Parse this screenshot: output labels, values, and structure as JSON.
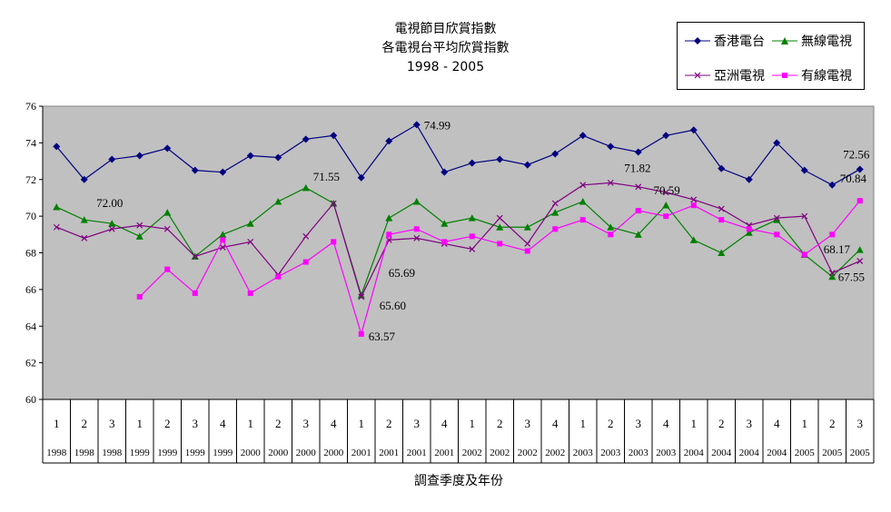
{
  "chart_data": {
    "type": "line",
    "title_lines": [
      "電視節目欣賞指數",
      "各電視台平均欣賞指數",
      "1998 - 2005"
    ],
    "xlabel": "調查季度及年份",
    "ylabel": "",
    "ylim": [
      60,
      76
    ],
    "yticks": [
      "60",
      "62",
      "64",
      "66",
      "68",
      "70",
      "72",
      "74",
      "76"
    ],
    "grid": false,
    "legend_position": "top-right",
    "categories": [
      {
        "q": "1",
        "y": "1998"
      },
      {
        "q": "2",
        "y": "1998"
      },
      {
        "q": "3",
        "y": "1998"
      },
      {
        "q": "1",
        "y": "1999"
      },
      {
        "q": "2",
        "y": "1999"
      },
      {
        "q": "3",
        "y": "1999"
      },
      {
        "q": "4",
        "y": "1999"
      },
      {
        "q": "1",
        "y": "2000"
      },
      {
        "q": "2",
        "y": "2000"
      },
      {
        "q": "3",
        "y": "2000"
      },
      {
        "q": "4",
        "y": "2000"
      },
      {
        "q": "1",
        "y": "2001"
      },
      {
        "q": "2",
        "y": "2001"
      },
      {
        "q": "3",
        "y": "2001"
      },
      {
        "q": "4",
        "y": "2001"
      },
      {
        "q": "1",
        "y": "2002"
      },
      {
        "q": "2",
        "y": "2002"
      },
      {
        "q": "3",
        "y": "2002"
      },
      {
        "q": "4",
        "y": "2002"
      },
      {
        "q": "1",
        "y": "2003"
      },
      {
        "q": "2",
        "y": "2003"
      },
      {
        "q": "3",
        "y": "2003"
      },
      {
        "q": "4",
        "y": "2003"
      },
      {
        "q": "1",
        "y": "2004"
      },
      {
        "q": "2",
        "y": "2004"
      },
      {
        "q": "3",
        "y": "2004"
      },
      {
        "q": "4",
        "y": "2004"
      },
      {
        "q": "1",
        "y": "2005"
      },
      {
        "q": "2",
        "y": "2005"
      },
      {
        "q": "3",
        "y": "2005"
      }
    ],
    "series": [
      {
        "name": "香港電台",
        "color": "#000080",
        "marker": "diamond",
        "values": [
          73.8,
          72.0,
          73.1,
          73.3,
          73.7,
          72.5,
          72.4,
          73.3,
          73.2,
          74.2,
          74.4,
          72.1,
          74.1,
          74.99,
          72.4,
          72.9,
          73.1,
          72.8,
          73.4,
          74.4,
          73.8,
          73.5,
          74.4,
          74.7,
          72.6,
          72.0,
          74.0,
          72.5,
          71.7,
          72.56
        ]
      },
      {
        "name": "無線電視",
        "color": "#008000",
        "marker": "triangle",
        "values": [
          70.5,
          69.8,
          69.6,
          68.9,
          70.2,
          67.8,
          69.0,
          69.6,
          70.8,
          71.55,
          70.7,
          65.69,
          69.9,
          70.8,
          69.6,
          69.9,
          69.4,
          69.4,
          70.2,
          70.8,
          69.4,
          69.0,
          70.6,
          68.7,
          68.0,
          69.1,
          69.8,
          67.9,
          66.7,
          68.17
        ]
      },
      {
        "name": "亞洲電視",
        "color": "#800080",
        "marker": "x",
        "values": [
          69.4,
          68.8,
          69.3,
          69.5,
          69.3,
          67.8,
          68.3,
          68.6,
          66.8,
          68.9,
          70.7,
          65.6,
          68.7,
          68.8,
          68.5,
          68.2,
          69.9,
          68.5,
          70.7,
          71.7,
          71.82,
          71.6,
          71.3,
          70.9,
          70.4,
          69.5,
          69.9,
          70.0,
          66.9,
          67.55
        ]
      },
      {
        "name": "有線電視",
        "color": "#FF00FF",
        "marker": "square",
        "values": [
          null,
          null,
          null,
          65.6,
          67.1,
          65.8,
          68.7,
          65.8,
          66.7,
          67.5,
          68.6,
          63.57,
          69.0,
          69.3,
          68.6,
          68.9,
          68.5,
          68.1,
          69.3,
          69.8,
          69.0,
          70.3,
          70.0,
          70.59,
          69.8,
          69.3,
          69.0,
          67.9,
          69.0,
          70.84
        ]
      }
    ],
    "data_labels": [
      {
        "series": 0,
        "index": 1,
        "text": "72.00"
      },
      {
        "series": 0,
        "index": 13,
        "text": "74.99"
      },
      {
        "series": 0,
        "index": 29,
        "text": "72.56"
      },
      {
        "series": 1,
        "index": 9,
        "text": "71.55"
      },
      {
        "series": 1,
        "index": 11,
        "text": "65.69"
      },
      {
        "series": 1,
        "index": 29,
        "text": "68.17"
      },
      {
        "series": 2,
        "index": 11,
        "text": "65.60"
      },
      {
        "series": 2,
        "index": 20,
        "text": "71.82"
      },
      {
        "series": 2,
        "index": 29,
        "text": "67.55"
      },
      {
        "series": 3,
        "index": 11,
        "text": "63.57"
      },
      {
        "series": 3,
        "index": 23,
        "text": "70.59"
      },
      {
        "series": 3,
        "index": 29,
        "text": "70.84"
      }
    ]
  }
}
